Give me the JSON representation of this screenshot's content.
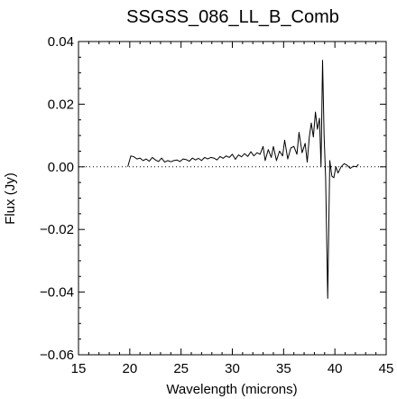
{
  "chart_data": {
    "type": "line",
    "title": "SSGSS_086_LL_B_Comb",
    "xlabel": "Wavelength (microns)",
    "ylabel": "Flux (Jy)",
    "xlim": [
      15,
      45
    ],
    "ylim": [
      -0.06,
      0.04
    ],
    "x_ticks": [
      15,
      20,
      25,
      30,
      35,
      40,
      45
    ],
    "y_ticks": [
      -0.06,
      -0.04,
      -0.02,
      0.0,
      0.02,
      0.04
    ],
    "x_tick_labels": [
      "15",
      "20",
      "25",
      "30",
      "35",
      "40",
      "45"
    ],
    "y_tick_labels": [
      "−0.06",
      "−0.04",
      "−0.02",
      "0.00",
      "0.02",
      "0.04"
    ],
    "zero_line": {
      "y": 0,
      "style": "dotted"
    },
    "grid": false,
    "series": [
      {
        "color": "#000000",
        "x": [
          19.8,
          20.1,
          20.4,
          20.7,
          21.0,
          21.3,
          21.6,
          21.9,
          22.2,
          22.5,
          22.8,
          23.1,
          23.4,
          23.7,
          24.0,
          24.3,
          24.6,
          24.9,
          25.2,
          25.5,
          25.8,
          26.1,
          26.4,
          26.7,
          27.0,
          27.3,
          27.6,
          27.9,
          28.2,
          28.5,
          28.8,
          29.1,
          29.4,
          29.7,
          30.0,
          30.3,
          30.6,
          30.9,
          31.2,
          31.5,
          31.8,
          32.1,
          32.4,
          32.7,
          33.0,
          33.2,
          33.5,
          33.8,
          34.0,
          34.3,
          34.6,
          34.9,
          35.1,
          35.4,
          35.7,
          36.0,
          36.3,
          36.5,
          36.8,
          37.1,
          37.3,
          37.5,
          37.7,
          37.9,
          38.1,
          38.3,
          38.5,
          38.65,
          38.8,
          38.95,
          39.1,
          39.3,
          39.5,
          39.7,
          39.9,
          40.1,
          40.3,
          40.6,
          40.9,
          41.2,
          41.5,
          41.8,
          42.1,
          42.3
        ],
        "y": [
          0.0,
          0.0035,
          0.0032,
          0.0025,
          0.0028,
          0.002,
          0.0025,
          0.0018,
          0.003,
          0.0022,
          0.0017,
          0.0028,
          0.0015,
          0.002,
          0.0016,
          0.002,
          0.0022,
          0.0017,
          0.0025,
          0.0023,
          0.0018,
          0.0028,
          0.0022,
          0.0027,
          0.002,
          0.003,
          0.0025,
          0.003,
          0.0028,
          0.0022,
          0.0033,
          0.0027,
          0.0035,
          0.003,
          0.004,
          0.0024,
          0.0038,
          0.0032,
          0.0042,
          0.0033,
          0.0048,
          0.0035,
          0.0045,
          0.004,
          0.0065,
          0.002,
          0.0055,
          0.003,
          0.0065,
          0.002,
          0.005,
          0.0035,
          0.0085,
          0.0025,
          0.006,
          0.0065,
          0.004,
          0.011,
          0.0045,
          0.0075,
          0.0015,
          0.0095,
          0.014,
          0.0095,
          0.0175,
          0.012,
          0.0155,
          0.0,
          0.034,
          0.01,
          -0.0035,
          -0.042,
          0.002,
          -0.003,
          -0.0035,
          0.0,
          -0.002,
          0.0,
          0.001,
          0.0005,
          -0.0005,
          0.0002,
          0.0,
          0.0008
        ]
      }
    ]
  }
}
